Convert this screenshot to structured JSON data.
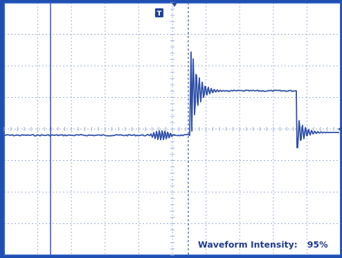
{
  "display": {
    "background_color": "#ffffff",
    "frame_color": "#2a5cc0",
    "grid_color": "#9aaed6",
    "trace_color": "#2d4fa6",
    "cursor_color": "#3a5cc8",
    "divisions": {
      "horizontal": 10,
      "vertical": 8
    }
  },
  "trigger": {
    "marker_icon": "trigger-T-icon",
    "marker_label": "T"
  },
  "readout": {
    "label": "Waveform Intensity:",
    "value": "95%"
  }
}
